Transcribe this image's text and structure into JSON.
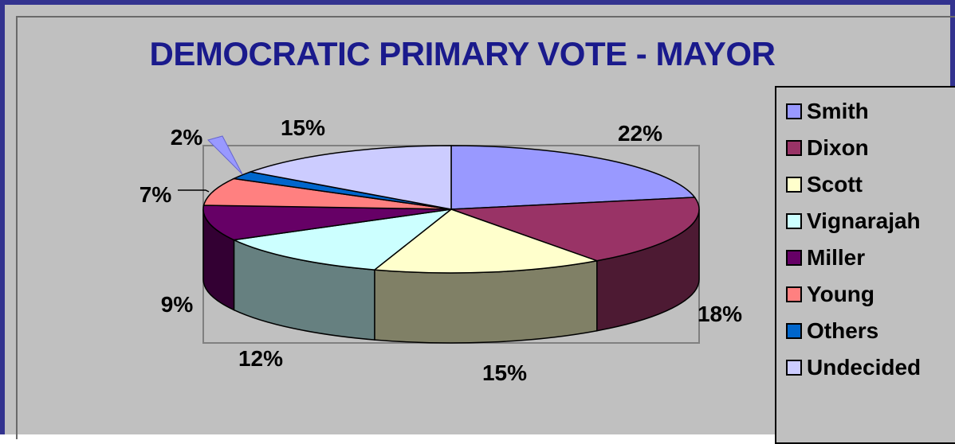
{
  "title": "DEMOCRATIC PRIMARY VOTE - MAYOR",
  "chart_data": {
    "type": "pie",
    "title": "DEMOCRATIC PRIMARY VOTE - MAYOR",
    "style": "3d-pie",
    "legend_position": "right",
    "categories": [
      "Smith",
      "Dixon",
      "Scott",
      "Vignarajah",
      "Miller",
      "Young",
      "Others",
      "Undecided"
    ],
    "values": [
      22,
      18,
      15,
      12,
      9,
      7,
      2,
      15
    ],
    "value_labels": [
      "22%",
      "18%",
      "15%",
      "12%",
      "9%",
      "7%",
      "2%",
      "15%"
    ],
    "colors": [
      "#9999ff",
      "#993366",
      "#ffffcc",
      "#ccffff",
      "#660066",
      "#ff8080",
      "#0066cc",
      "#ccccff"
    ]
  }
}
